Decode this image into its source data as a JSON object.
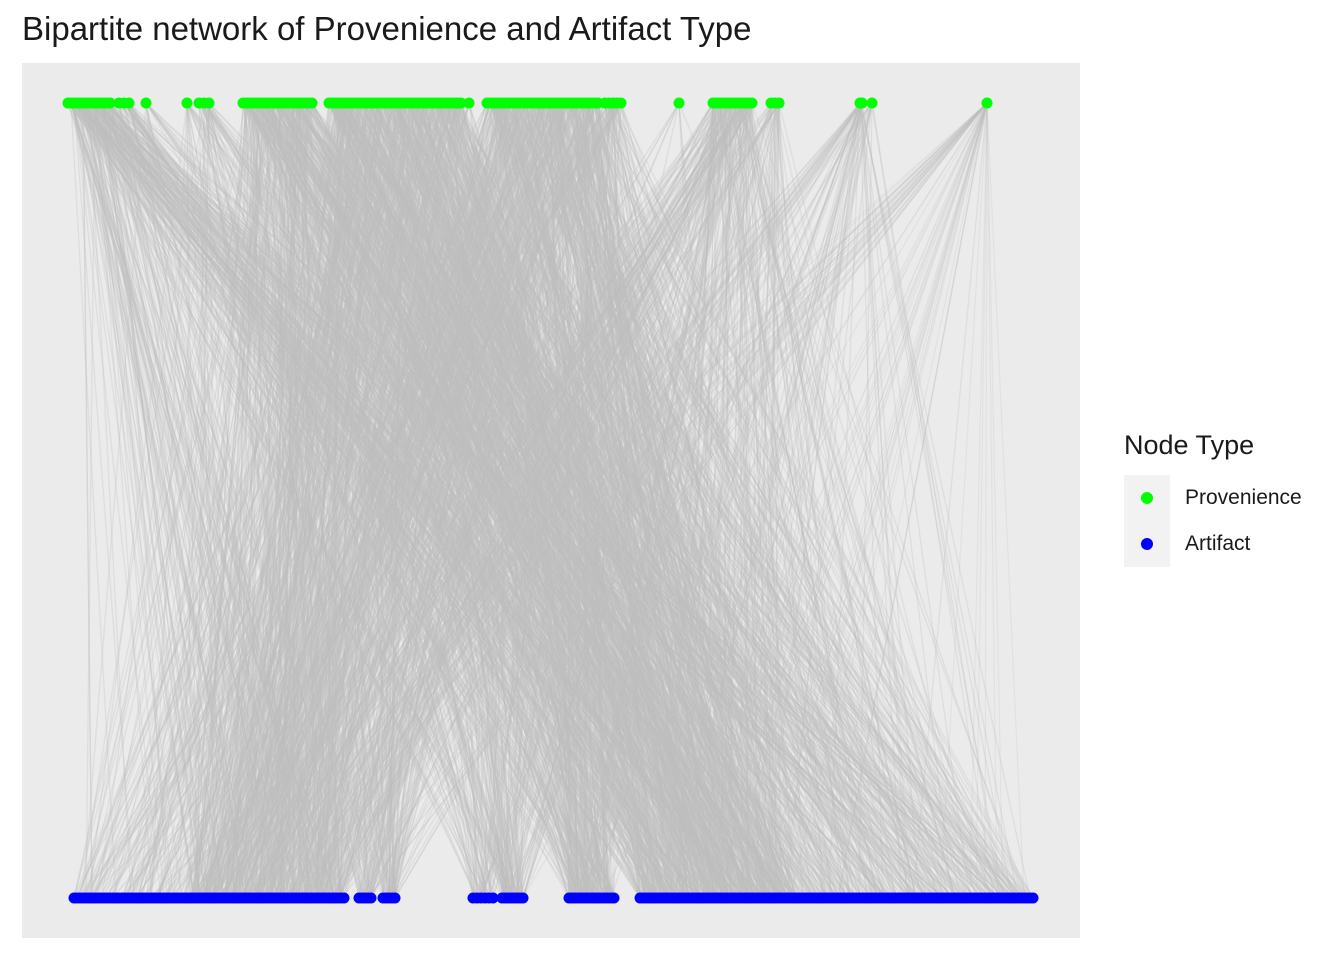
{
  "title": "Bipartite network of Provenience and Artifact Type",
  "legend": {
    "title": "Node Type",
    "items": [
      {
        "label": "Provenience",
        "color": "#00ff00"
      },
      {
        "label": "Artifact",
        "color": "#0000ff"
      }
    ]
  },
  "chart_data": {
    "type": "bipartite-network",
    "title": "Bipartite network of Provenience and Artifact Type",
    "node_types": [
      "Provenience",
      "Artifact"
    ],
    "node_colors": {
      "Provenience": "#00ff00",
      "Artifact": "#0000ff"
    },
    "edge_color": "#bebebe",
    "panel_background": "#ebebeb",
    "grid": false,
    "axes_visible": false,
    "legend_position": "right"
  }
}
